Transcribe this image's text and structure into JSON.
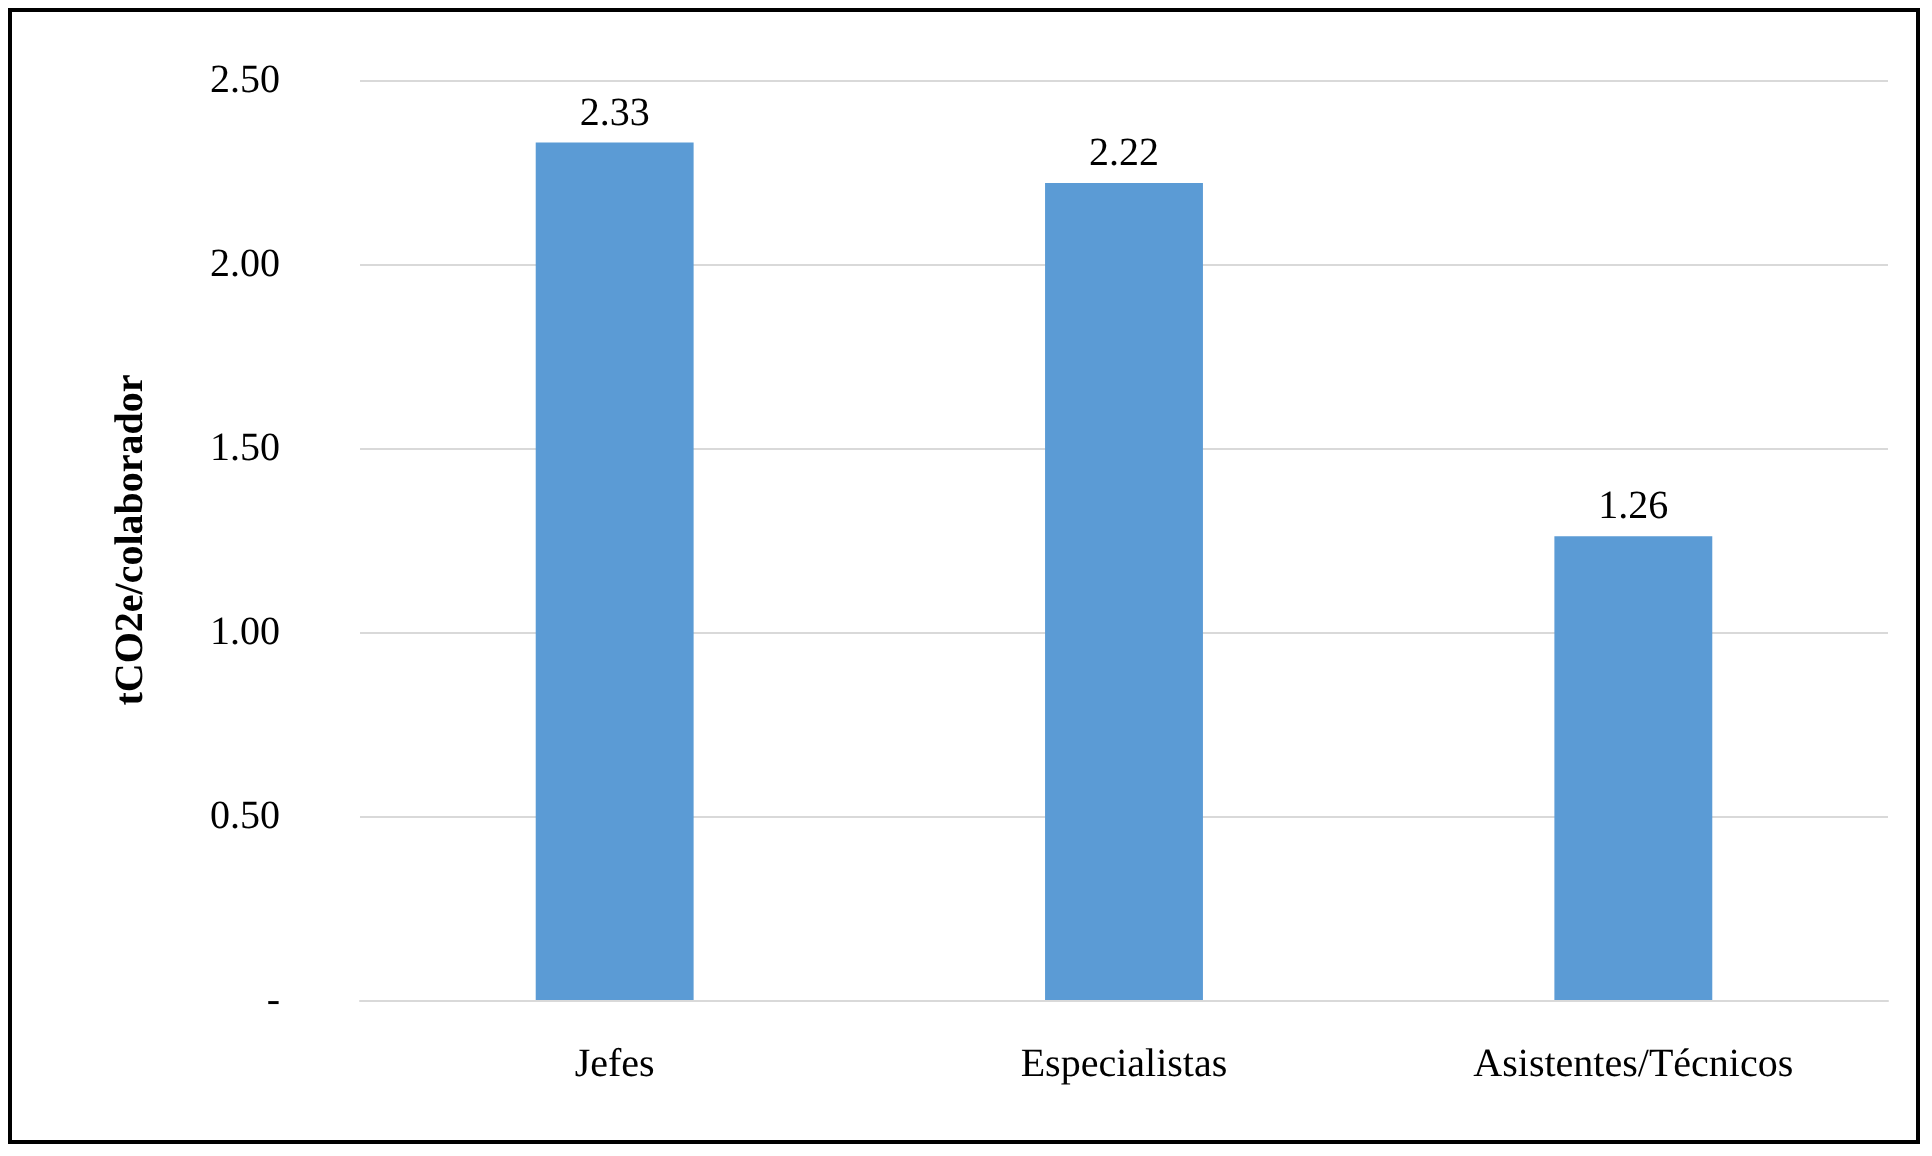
{
  "chart_data": {
    "type": "bar",
    "ylabel": "tCO2e/colaborador",
    "categories": [
      "Jefes",
      "Especialistas",
      "Asistentes/Técnicos"
    ],
    "values": [
      2.33,
      2.22,
      1.26
    ],
    "color": "#5b9bd5",
    "ylim": [
      0,
      2.5
    ],
    "yticks": [
      {
        "value": 0,
        "label": "-"
      },
      {
        "value": 0.5,
        "label": "0.50"
      },
      {
        "value": 1,
        "label": "1.00"
      },
      {
        "value": 1.5,
        "label": "1.50"
      },
      {
        "value": 2,
        "label": "2.00"
      },
      {
        "value": 2.5,
        "label": "2.50"
      }
    ],
    "grid": "y",
    "data_labels": true
  }
}
